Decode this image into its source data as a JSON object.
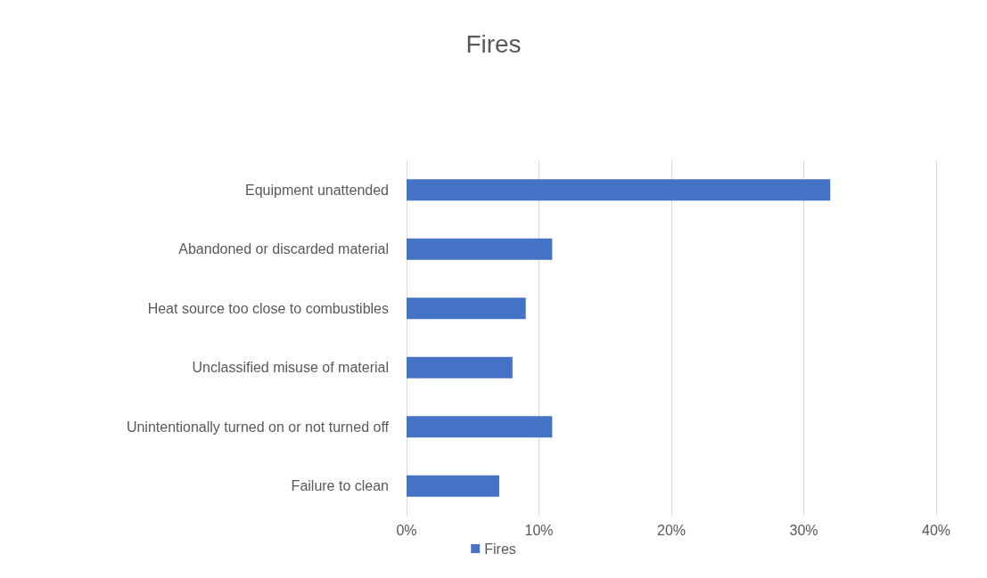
{
  "chart_data": {
    "type": "bar",
    "title": "Fires",
    "orientation": "horizontal",
    "categories": [
      "Equipment unattended",
      "Abandoned or discarded material",
      "Heat source too close to combustibles",
      "Unclassified misuse of material",
      "Unintentionally turned on or not turned off",
      "Failure to clean"
    ],
    "series": [
      {
        "name": "Fires",
        "color": "#4472c4",
        "values": [
          32,
          11,
          9,
          8,
          11,
          7
        ]
      }
    ],
    "xlim": [
      0,
      40
    ],
    "xticks": [
      {
        "value": 0,
        "label": "0%"
      },
      {
        "value": 10,
        "label": "10%"
      },
      {
        "value": 20,
        "label": "20%"
      },
      {
        "value": 30,
        "label": "30%"
      },
      {
        "value": 40,
        "label": "40%"
      }
    ],
    "grid": "x",
    "legend": "bottom"
  }
}
